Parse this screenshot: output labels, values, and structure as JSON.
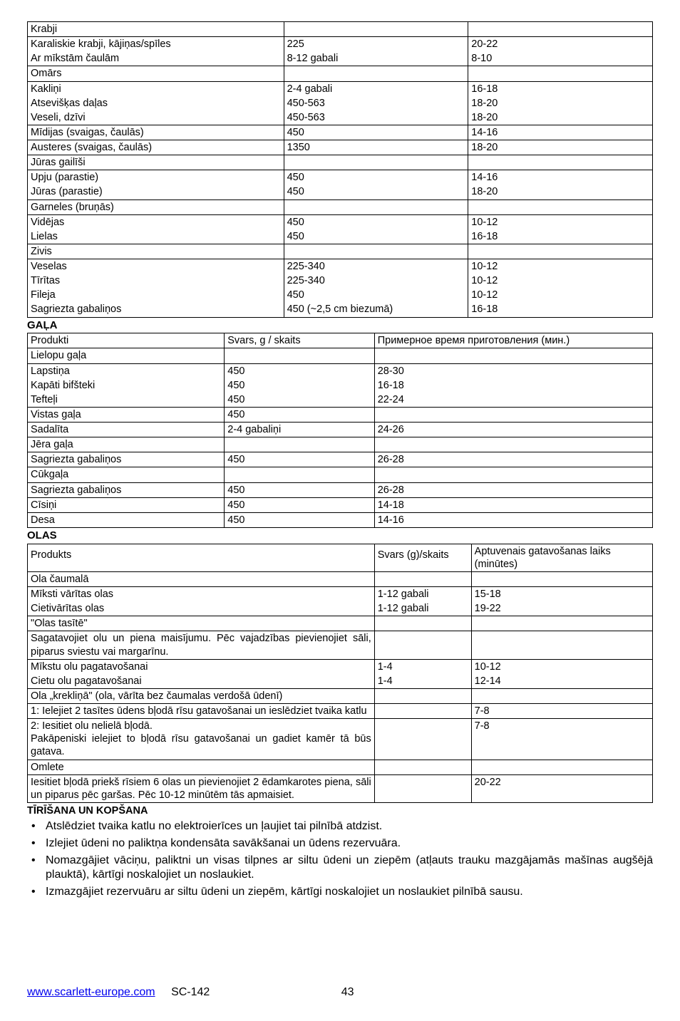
{
  "table1": {
    "rows": [
      {
        "p": "Krabji",
        "w": "",
        "t": ""
      },
      {
        "p": "Karaliskie krabji, kājiņas/spīles",
        "w": "225",
        "t": "20-22",
        "merge": "top"
      },
      {
        "p": "Ar mīkstām čaulām",
        "w": "8-12 gabali",
        "t": "8-10",
        "merge": "bot"
      },
      {
        "p": "Omārs",
        "w": "",
        "t": ""
      },
      {
        "p": "Kakliņi",
        "w": "2-4 gabali",
        "t": "16-18",
        "merge": "top"
      },
      {
        "p": "Atsevišķas daļas",
        "w": "450-563",
        "t": "18-20",
        "merge": "mid"
      },
      {
        "p": "Veseli, dzīvi",
        "w": "450-563",
        "t": "18-20",
        "merge": "bot"
      },
      {
        "p": "Mīdijas (svaigas, čaulās)",
        "w": "450",
        "t": "14-16"
      },
      {
        "p": "Austeres (svaigas, čaulās)",
        "w": "1350",
        "t": "18-20"
      },
      {
        "p": "Jūras gailīši",
        "w": "",
        "t": ""
      },
      {
        "p": "Upju (parastie)",
        "w": "450",
        "t": "14-16",
        "merge": "top"
      },
      {
        "p": "Jūras (parastie)",
        "w": "450",
        "t": "18-20",
        "merge": "bot"
      },
      {
        "p": "Garneles (bruņās)",
        "w": "",
        "t": ""
      },
      {
        "p": "Vidējas",
        "w": "450",
        "t": "10-12",
        "merge": "top"
      },
      {
        "p": "Lielas",
        "w": "450",
        "t": "16-18",
        "merge": "bot"
      },
      {
        "p": "Zivis",
        "w": "",
        "t": ""
      },
      {
        "p": "Veselas",
        "w": "225-340",
        "t": "10-12",
        "merge": "top"
      },
      {
        "p": "Tīrītas",
        "w": "225-340",
        "t": "10-12",
        "merge": "mid"
      },
      {
        "p": "Fileja",
        "w": "450",
        "t": "10-12",
        "merge": "mid"
      },
      {
        "p": "Sagriezta gabaliņos",
        "w": "450 (~2,5 cm biezumā)",
        "t": "16-18",
        "merge": "bot"
      }
    ]
  },
  "section2_title": "GAĻA",
  "table2": {
    "header": {
      "c1": "Produkti",
      "c2": "Svars, g / skaits",
      "c3": "Примерное время приготовления (мин.)"
    },
    "rows": [
      {
        "p": "Lielopu gaļa",
        "w": "",
        "t": ""
      },
      {
        "p": "Lapstiņa",
        "w": "450",
        "t": "28-30",
        "merge": "top"
      },
      {
        "p": "Kapāti bifšteki",
        "w": "450",
        "t": "16-18",
        "merge": "mid"
      },
      {
        "p": "Tefteļi",
        "w": "450",
        "t": "22-24",
        "merge": "bot"
      },
      {
        "p": "Vistas gaļa",
        "w": "450",
        "t": ""
      },
      {
        "p": "Sadalīta",
        "w": "2-4 gabaliņi",
        "t": "24-26"
      },
      {
        "p": "Jēra gaļa",
        "w": "",
        "t": ""
      },
      {
        "p": "Sagriezta gabaliņos",
        "w": "450",
        "t": "26-28"
      },
      {
        "p": "Cūkgaļa",
        "w": "",
        "t": ""
      },
      {
        "p": "Sagriezta gabaliņos",
        "w": "450",
        "t": "26-28"
      },
      {
        "p": "Cīsiņi",
        "w": "450",
        "t": "14-18"
      },
      {
        "p": "Desa",
        "w": "450",
        "t": "14-16"
      }
    ]
  },
  "section3_title": "OLAS",
  "table3": {
    "header": {
      "c1": "Produkts",
      "c2": "Svars (g)/skaits",
      "c3": "Aptuvenais gatavošanas laiks (minūtes)"
    },
    "rows": [
      {
        "p": "Ola čaumalā",
        "w": "",
        "t": ""
      },
      {
        "p": "Mīksti vārītas olas",
        "w": "1-12 gabali",
        "t": "15-18",
        "merge": "top"
      },
      {
        "p": "Cietivārītas olas",
        "w": "1-12 gabali",
        "t": "19-22",
        "merge": "bot"
      },
      {
        "p": "\"Olas tasītē\"",
        "w": "",
        "t": ""
      },
      {
        "p": "Sagatavojiet olu un piena maisījumu. Pēc vajadzības pievienojiet sāli, piparus sviestu vai margarīnu.",
        "w": "",
        "t": ""
      },
      {
        "p": "Mīkstu olu pagatavošanai",
        "w": "1-4",
        "t": "10-12",
        "merge": "top"
      },
      {
        "p": "Cietu olu pagatavošanai",
        "w": "1-4",
        "t": "12-14",
        "merge": "bot"
      },
      {
        "p": "Ola „krekliņā\"  (ola, vārīta bez čaumalas verdošā ūdenī)",
        "w": "",
        "t": ""
      },
      {
        "p": "1: Ielejiet 2 tasītes ūdens bļodā rīsu gatavošanai un ieslēdziet tvaika katlu",
        "w": "",
        "t": "7-8"
      },
      {
        "p": "2: Iesitiet olu nelielā bļodā.\nPakāpeniski ielejiet to bļodā rīsu gatavošanai un gadiet kamēr tā būs gatava.",
        "w": "",
        "t": "7-8"
      },
      {
        "p": "Omlete",
        "w": "",
        "t": ""
      },
      {
        "p": "Iesitiet bļodā priekš rīsiem 6 olas un pievienojiet 2 ēdamkarotes piena, sāli un piparus pēc garšas. Pēc 10-12 minūtēm tās apmaisiet.",
        "w": "",
        "t": "20-22"
      }
    ]
  },
  "instructions_title": "TĪRĪŠANA UN KOPŠANA",
  "instructions": [
    "Atslēdziet tvaika katlu no elektroierīces un ļaujiet tai pilnībā atdzist.",
    "Izlejiet ūdeni no paliktņa kondensāta savākšanai un ūdens rezervuāra.",
    "Nomazgājiet vāciņu, paliktni un visas tilpnes ar siltu ūdeni un ziepēm (atļauts trauku mazgājamās mašīnas augšējā plauktā), kārtīgi noskalojiet un noslaukiet.",
    "Izmazgājiet rezervuāru ar siltu ūdeni un ziepēm, kārtīgi noskalojiet un noslaukiet pilnībā sausu."
  ],
  "footer": {
    "url": "www.scarlett-europe.com",
    "model": "SC-142",
    "page": "43"
  }
}
